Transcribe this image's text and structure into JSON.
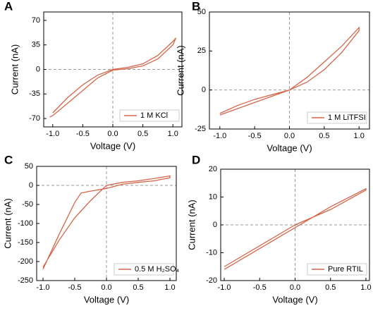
{
  "chart_data": [
    {
      "type": "line",
      "panel": "A",
      "xlabel": "Voltage (V)",
      "ylabel": "Current (nA)",
      "x": [
        -1.0,
        -0.75,
        -0.5,
        -0.25,
        0,
        0.25,
        0.5,
        0.75,
        1.0,
        1.05,
        1.0,
        0.75,
        0.5,
        0.25,
        0,
        -0.25,
        -0.5,
        -0.75,
        -1.0,
        -1.05
      ],
      "series": [
        {
          "name": "1 M KCl",
          "color": "#d4654a",
          "values": [
            -62,
            -40,
            -22,
            -8,
            0,
            3,
            8,
            20,
            40,
            45,
            35,
            15,
            5,
            1,
            -1,
            -12,
            -30,
            -48,
            -66,
            -68
          ]
        }
      ],
      "xlim": [
        -1.15,
        1.15
      ],
      "ylim": [
        -82,
        82
      ],
      "xticks": [
        {
          "value": -1,
          "label": "-1.0"
        },
        -0.5,
        {
          "value": 0,
          "label": "0.0"
        },
        0.5,
        {
          "value": 1,
          "label": "1.0"
        }
      ],
      "yticks": [
        -70,
        -35,
        0,
        35,
        70
      ],
      "legend": "lower right"
    },
    {
      "type": "line",
      "panel": "B",
      "xlabel": "Voltage (V)",
      "ylabel": "Current (nA)",
      "x": [
        -1.0,
        -0.75,
        -0.5,
        -0.25,
        0,
        0.25,
        0.5,
        0.75,
        1.0,
        1.0,
        0.75,
        0.5,
        0.25,
        0,
        -0.25,
        -0.5,
        -0.75,
        -1.0
      ],
      "series": [
        {
          "name": "1 M LiTFSI",
          "color": "#d4654a",
          "values": [
            -15,
            -10,
            -6,
            -3,
            0,
            5,
            13,
            24,
            38,
            40,
            28,
            18,
            8,
            0,
            -4,
            -8,
            -12,
            -16
          ]
        }
      ],
      "xlim": [
        -1.15,
        1.15
      ],
      "ylim": [
        -25,
        50
      ],
      "xticks": [
        {
          "value": -1,
          "label": "-1.0"
        },
        -0.5,
        {
          "value": 0,
          "label": "0.0"
        },
        0.5,
        {
          "value": 1,
          "label": "1.0"
        }
      ],
      "yticks": [
        -25,
        0,
        25,
        50
      ],
      "legend": "lower right"
    },
    {
      "type": "line",
      "panel": "C",
      "xlabel": "Voltage (V)",
      "ylabel": "Current (nA)",
      "x": [
        -1.0,
        -0.75,
        -0.5,
        -0.4,
        -0.25,
        0,
        0.25,
        0.5,
        0.75,
        1.0,
        1.0,
        0.75,
        0.5,
        0.25,
        0,
        -0.25,
        -0.5,
        -0.75,
        -1.0
      ],
      "series": [
        {
          "name": "0.5 M H₂SO₄",
          "color": "#d4654a",
          "values": [
            -220,
            -130,
            -45,
            -20,
            -15,
            -8,
            3,
            8,
            12,
            20,
            25,
            18,
            12,
            8,
            0,
            -40,
            -85,
            -145,
            -215
          ]
        }
      ],
      "xlim": [
        -1.1,
        1.1
      ],
      "ylim": [
        -250,
        50
      ],
      "xticks": [
        {
          "value": -1,
          "label": "-1.0"
        },
        -0.5,
        {
          "value": 0,
          "label": "0.0"
        },
        0.5,
        {
          "value": 1,
          "label": "1.0"
        }
      ],
      "yticks": [
        -250,
        -200,
        -150,
        -100,
        -50,
        0,
        50
      ],
      "legend": "lower right"
    },
    {
      "type": "line",
      "panel": "D",
      "xlabel": "Voltage (V)",
      "ylabel": "Current (nA)",
      "x": [
        -1.0,
        -0.5,
        0,
        0.5,
        1.0,
        1.0,
        0.5,
        0,
        -0.5,
        -1.0
      ],
      "series": [
        {
          "name": "Pure RTIL",
          "color": "#d4654a",
          "values": [
            -16,
            -8.5,
            -1,
            6.5,
            13,
            12.5,
            5.5,
            0,
            -7.5,
            -15
          ]
        }
      ],
      "xlim": [
        -1.05,
        1.05
      ],
      "ylim": [
        -20,
        20
      ],
      "xticks": [
        {
          "value": -1,
          "label": "-1.0"
        },
        -0.5,
        {
          "value": 0,
          "label": "0.0"
        },
        0.5,
        {
          "value": 1,
          "label": "1.0"
        }
      ],
      "yticks": [
        -20,
        -10,
        0,
        10,
        20
      ],
      "legend": "lower right"
    }
  ]
}
